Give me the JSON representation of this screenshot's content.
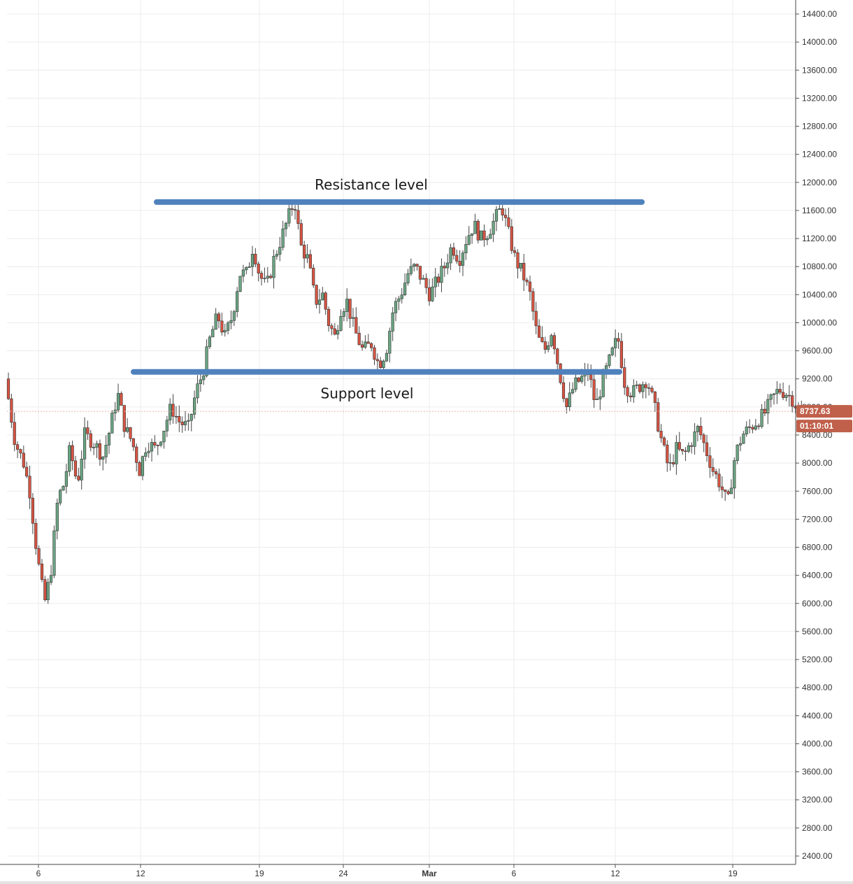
{
  "chart_data": {
    "type": "candlestick",
    "title": "",
    "xlabel": "",
    "ylabel": "",
    "ylim": [
      2400,
      14400
    ],
    "grid": true,
    "y_ticks": [
      "14400.00",
      "14000.00",
      "13600.00",
      "13200.00",
      "12800.00",
      "12400.00",
      "12000.00",
      "11600.00",
      "11200.00",
      "10800.00",
      "10400.00",
      "10000.00",
      "9600.00",
      "9200.00",
      "8800.00",
      "8400.00",
      "8000.00",
      "7600.00",
      "7200.00",
      "6800.00",
      "6400.00",
      "6000.00",
      "5600.00",
      "5200.00",
      "4800.00",
      "4400.00",
      "4000.00",
      "3600.00",
      "3200.00",
      "2800.00",
      "2400.00"
    ],
    "x_ticks": [
      "6",
      "12",
      "19",
      "24",
      "Mar",
      "6",
      "12",
      "19"
    ],
    "price_path": [
      {
        "day": 0.0,
        "price": 9200
      },
      {
        "day": 0.8,
        "price": 8300
      },
      {
        "day": 1.5,
        "price": 8000
      },
      {
        "day": 2.0,
        "price": 7600
      },
      {
        "day": 2.6,
        "price": 6700
      },
      {
        "day": 3.2,
        "price": 6000
      },
      {
        "day": 3.7,
        "price": 6400
      },
      {
        "day": 4.3,
        "price": 7500
      },
      {
        "day": 4.8,
        "price": 7700
      },
      {
        "day": 5.3,
        "price": 8200
      },
      {
        "day": 5.9,
        "price": 7700
      },
      {
        "day": 6.5,
        "price": 8400
      },
      {
        "day": 7.2,
        "price": 8300
      },
      {
        "day": 8.0,
        "price": 8100
      },
      {
        "day": 8.6,
        "price": 8500
      },
      {
        "day": 9.2,
        "price": 9000
      },
      {
        "day": 9.8,
        "price": 8500
      },
      {
        "day": 10.4,
        "price": 8300
      },
      {
        "day": 11.0,
        "price": 7900
      },
      {
        "day": 11.6,
        "price": 8300
      },
      {
        "day": 12.3,
        "price": 8200
      },
      {
        "day": 13.0,
        "price": 8500
      },
      {
        "day": 13.6,
        "price": 8800
      },
      {
        "day": 14.2,
        "price": 8600
      },
      {
        "day": 15.0,
        "price": 8500
      },
      {
        "day": 15.6,
        "price": 9000
      },
      {
        "day": 16.2,
        "price": 9300
      },
      {
        "day": 16.8,
        "price": 9800
      },
      {
        "day": 17.4,
        "price": 10100
      },
      {
        "day": 18.0,
        "price": 9800
      },
      {
        "day": 18.6,
        "price": 10100
      },
      {
        "day": 19.2,
        "price": 10700
      },
      {
        "day": 19.8,
        "price": 10700
      },
      {
        "day": 20.3,
        "price": 11100
      },
      {
        "day": 20.8,
        "price": 10700
      },
      {
        "day": 21.4,
        "price": 10500
      },
      {
        "day": 22.0,
        "price": 10900
      },
      {
        "day": 22.6,
        "price": 11200
      },
      {
        "day": 23.2,
        "price": 11500
      },
      {
        "day": 23.7,
        "price": 11750
      },
      {
        "day": 24.2,
        "price": 11100
      },
      {
        "day": 24.8,
        "price": 10900
      },
      {
        "day": 25.4,
        "price": 10300
      },
      {
        "day": 26.0,
        "price": 10400
      },
      {
        "day": 26.5,
        "price": 10000
      },
      {
        "day": 27.0,
        "price": 9800
      },
      {
        "day": 27.5,
        "price": 10200
      },
      {
        "day": 28.0,
        "price": 10300
      },
      {
        "day": 28.6,
        "price": 9900
      },
      {
        "day": 29.3,
        "price": 9600
      },
      {
        "day": 30.0,
        "price": 9700
      },
      {
        "day": 30.6,
        "price": 9400
      },
      {
        "day": 31.2,
        "price": 9600
      },
      {
        "day": 31.8,
        "price": 10200
      },
      {
        "day": 32.4,
        "price": 10400
      },
      {
        "day": 33.0,
        "price": 10700
      },
      {
        "day": 33.6,
        "price": 10800
      },
      {
        "day": 34.2,
        "price": 10600
      },
      {
        "day": 34.8,
        "price": 10400
      },
      {
        "day": 35.4,
        "price": 10600
      },
      {
        "day": 36.0,
        "price": 10800
      },
      {
        "day": 36.6,
        "price": 11100
      },
      {
        "day": 37.2,
        "price": 10900
      },
      {
        "day": 37.8,
        "price": 11200
      },
      {
        "day": 38.4,
        "price": 11400
      },
      {
        "day": 39.0,
        "price": 11200
      },
      {
        "day": 39.6,
        "price": 11300
      },
      {
        "day": 40.2,
        "price": 11500
      },
      {
        "day": 40.7,
        "price": 11650
      },
      {
        "day": 41.2,
        "price": 11300
      },
      {
        "day": 41.8,
        "price": 10900
      },
      {
        "day": 42.4,
        "price": 10700
      },
      {
        "day": 43.0,
        "price": 10400
      },
      {
        "day": 43.6,
        "price": 9800
      },
      {
        "day": 44.2,
        "price": 9600
      },
      {
        "day": 44.8,
        "price": 9900
      },
      {
        "day": 45.4,
        "price": 9300
      },
      {
        "day": 46.0,
        "price": 8800
      },
      {
        "day": 46.6,
        "price": 9100
      },
      {
        "day": 47.2,
        "price": 9200
      },
      {
        "day": 47.8,
        "price": 9300
      },
      {
        "day": 48.4,
        "price": 8800
      },
      {
        "day": 49.0,
        "price": 9200
      },
      {
        "day": 49.6,
        "price": 9500
      },
      {
        "day": 50.2,
        "price": 9800
      },
      {
        "day": 50.8,
        "price": 9100
      },
      {
        "day": 51.4,
        "price": 9000
      },
      {
        "day": 52.0,
        "price": 9100
      },
      {
        "day": 52.6,
        "price": 9200
      },
      {
        "day": 53.2,
        "price": 8800
      },
      {
        "day": 53.8,
        "price": 8300
      },
      {
        "day": 54.4,
        "price": 7900
      },
      {
        "day": 55.0,
        "price": 8200
      },
      {
        "day": 55.6,
        "price": 8100
      },
      {
        "day": 56.2,
        "price": 8300
      },
      {
        "day": 56.8,
        "price": 8500
      },
      {
        "day": 57.4,
        "price": 8200
      },
      {
        "day": 58.0,
        "price": 7900
      },
      {
        "day": 58.6,
        "price": 7700
      },
      {
        "day": 59.2,
        "price": 7400
      },
      {
        "day": 59.8,
        "price": 8100
      },
      {
        "day": 60.4,
        "price": 8400
      },
      {
        "day": 61.0,
        "price": 8500
      },
      {
        "day": 61.6,
        "price": 8600
      },
      {
        "day": 62.2,
        "price": 8700
      },
      {
        "day": 62.8,
        "price": 8900
      },
      {
        "day": 63.4,
        "price": 9050
      },
      {
        "day": 64.0,
        "price": 9000
      },
      {
        "day": 64.6,
        "price": 8900
      },
      {
        "day": 65.0,
        "price": 8740
      }
    ],
    "annotations": [
      {
        "label": "Resistance level",
        "price": 11720
      },
      {
        "label": "Support level",
        "price": 9300
      }
    ],
    "last_price_label": "8737.63",
    "last_price": 8737.63,
    "countdown_label": "01:10:01",
    "colors": {
      "up": "#6ba583",
      "down": "#d75442",
      "level": "#4f81bd",
      "grid": "#ececec",
      "price_line": "#e8b7a8",
      "badge": "#c0604b"
    }
  }
}
